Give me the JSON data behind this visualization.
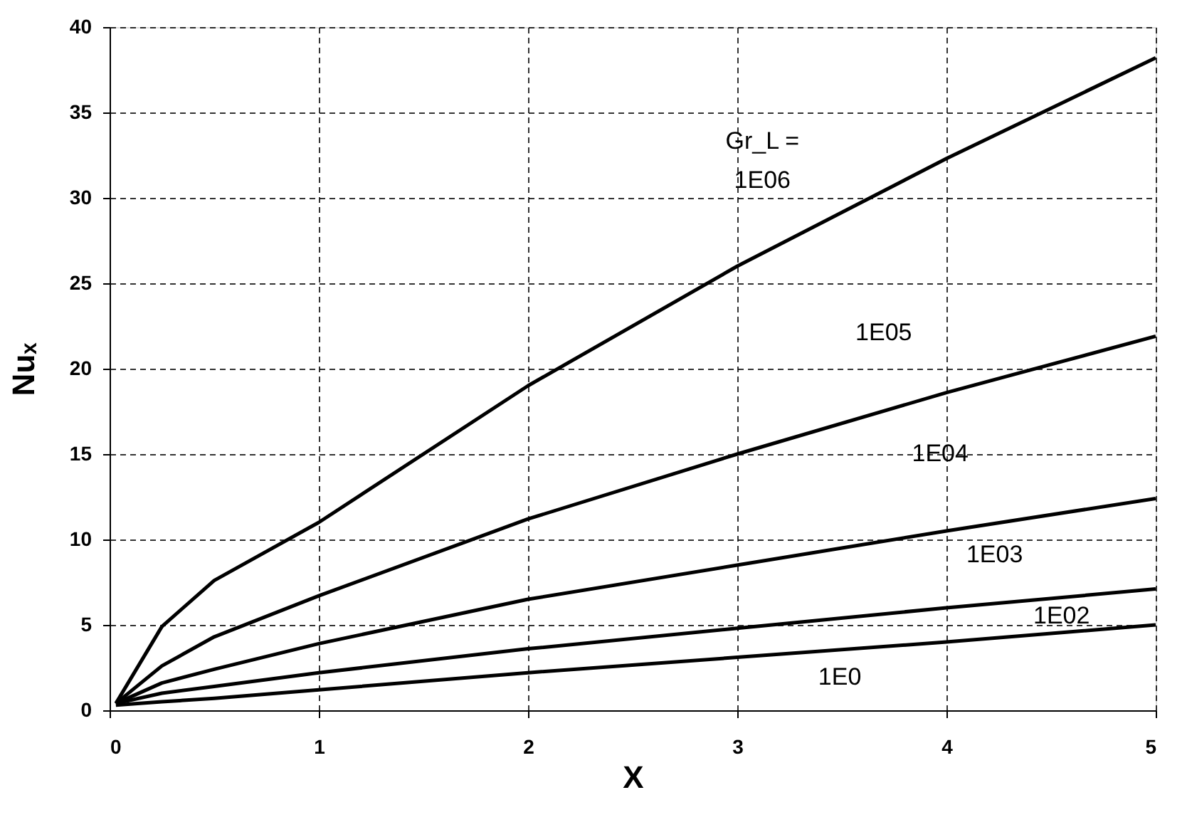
{
  "chart_data": {
    "type": "line",
    "xlabel": "X",
    "ylabel": "Nuₓ",
    "x": [
      0.03,
      0.25,
      0.5,
      1,
      2,
      3,
      4,
      5
    ],
    "series": [
      {
        "color": "#000000",
        "values": [
          0.4,
          4.9,
          7.6,
          11.0,
          19.0,
          26.0,
          32.3,
          38.2
        ]
      },
      {
        "color": "#000000",
        "values": [
          0.4,
          2.6,
          4.3,
          6.7,
          11.2,
          15.0,
          18.6,
          21.9
        ]
      },
      {
        "color": "#000000",
        "values": [
          0.4,
          1.6,
          2.4,
          3.9,
          6.5,
          8.5,
          10.5,
          12.4
        ]
      },
      {
        "color": "#000000",
        "values": [
          0.4,
          1.0,
          1.4,
          2.2,
          3.6,
          4.8,
          6.0,
          7.1
        ]
      },
      {
        "color": "#000000",
        "values": [
          0.3,
          0.5,
          0.7,
          1.2,
          2.2,
          3.1,
          4.0,
          5.0
        ]
      }
    ],
    "annotations": [
      "Gr_L =",
      "1E06",
      "1E05",
      "1E04",
      "1E03",
      "1E02",
      "1E0"
    ],
    "xlim": [
      0,
      5
    ],
    "xticks": [
      0,
      1,
      2,
      3,
      4,
      5
    ],
    "ylim": [
      0,
      40
    ],
    "yticks": [
      0,
      5,
      10,
      15,
      20,
      25,
      30,
      35,
      40
    ],
    "grid": true,
    "legend": false,
    "marker": "none",
    "line_style": "solid"
  }
}
